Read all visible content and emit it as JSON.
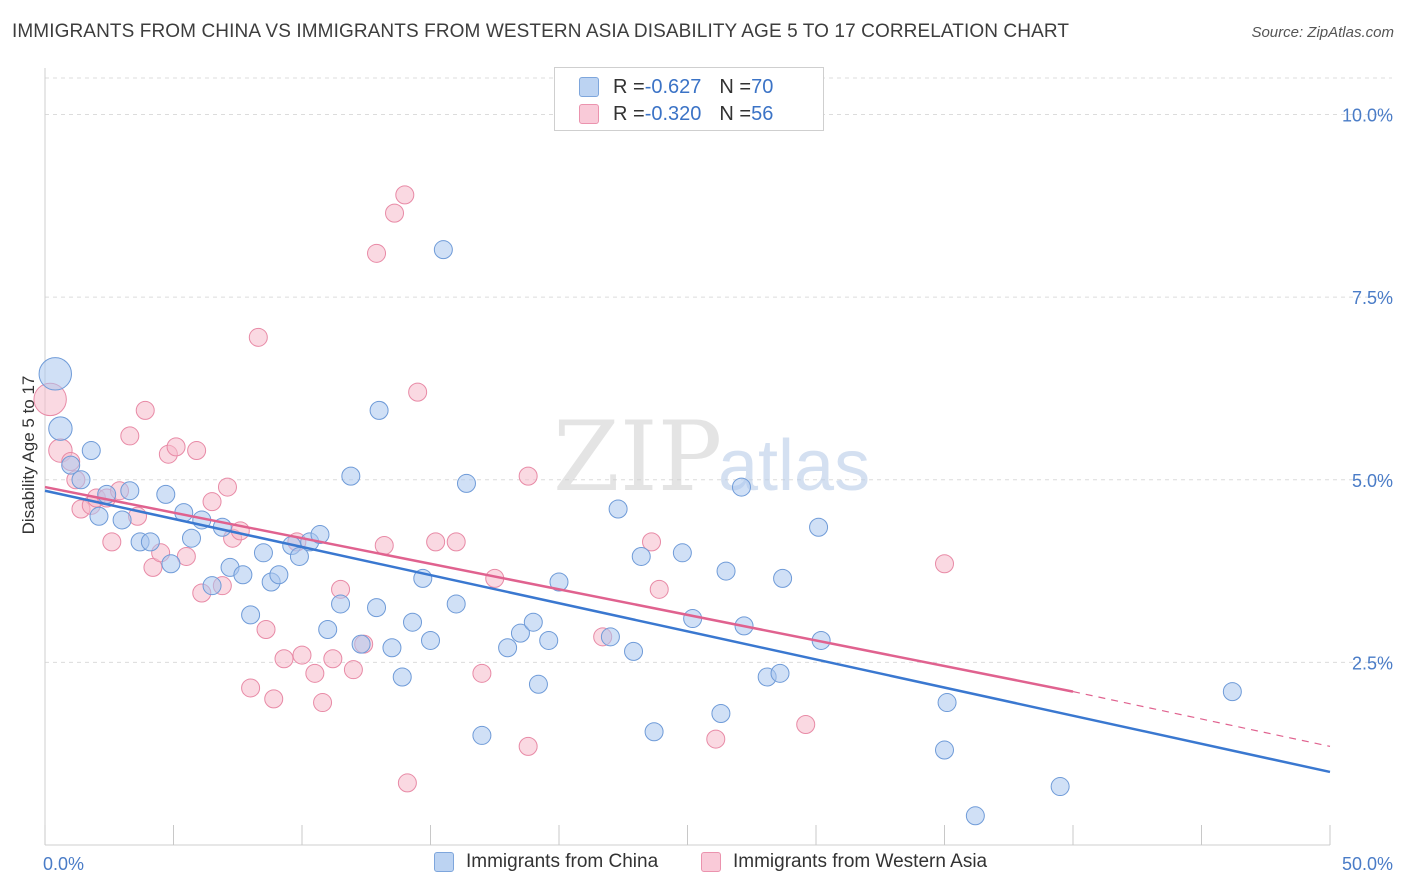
{
  "title": "IMMIGRANTS FROM CHINA VS IMMIGRANTS FROM WESTERN ASIA DISABILITY AGE 5 TO 17 CORRELATION CHART",
  "source": "Source: ZipAtlas.com",
  "watermark": {
    "zip": "ZIP",
    "atlas": "atlas"
  },
  "legend": {
    "rows": [
      {
        "r_label": "R = ",
        "r_value": "-0.627",
        "n_label": "N = ",
        "n_value": "70"
      },
      {
        "r_label": "R = ",
        "r_value": "-0.320",
        "n_label": "N = ",
        "n_value": "56"
      }
    ]
  },
  "bottom_legend": {
    "china": "Immigrants from China",
    "western_asia": "Immigrants from Western Asia"
  },
  "colors": {
    "china_fill": "#a9c7ee",
    "china_stroke": "#6f9bd8",
    "china_line": "#3a78d0",
    "wasia_fill": "#f6b9cb",
    "wasia_stroke": "#e88aa6",
    "wasia_line": "#e0628f",
    "grid": "#dcdcdc",
    "axis_label": "#4a7cc7"
  },
  "chart_data": {
    "type": "scatter",
    "title": "IMMIGRANTS FROM CHINA VS IMMIGRANTS FROM WESTERN ASIA DISABILITY AGE 5 TO 17 CORRELATION CHART",
    "xlabel": "",
    "ylabel": "Disability Age 5 to 17",
    "xlim": [
      0,
      50
    ],
    "ylim": [
      0,
      10.5
    ],
    "x_tick_labels": {
      "min": "0.0%",
      "max": "50.0%"
    },
    "y_ticks": [
      2.5,
      5.0,
      7.5,
      10.0
    ],
    "y_tick_labels": [
      "2.5%",
      "5.0%",
      "7.5%",
      "10.0%"
    ],
    "grid": true,
    "legend_position": "top-center",
    "series": [
      {
        "name": "Immigrants from China",
        "trend": {
          "x0": 0,
          "y0": 4.85,
          "x1": 50,
          "y1": 1.0
        },
        "points": [
          [
            0.4,
            6.45,
            1.8
          ],
          [
            0.6,
            5.7,
            1.3
          ],
          [
            1.0,
            5.2,
            1.0
          ],
          [
            1.4,
            5.0,
            1.0
          ],
          [
            1.8,
            5.4,
            1.0
          ],
          [
            2.1,
            4.5,
            1.0
          ],
          [
            2.4,
            4.8,
            1.0
          ],
          [
            3.0,
            4.45,
            1.0
          ],
          [
            3.3,
            4.85,
            1.0
          ],
          [
            3.7,
            4.15,
            1.0
          ],
          [
            4.1,
            4.15,
            1.0
          ],
          [
            4.7,
            4.8,
            1.0
          ],
          [
            4.9,
            3.85,
            1.0
          ],
          [
            5.4,
            4.55,
            1.0
          ],
          [
            5.7,
            4.2,
            1.0
          ],
          [
            6.1,
            4.45,
            1.0
          ],
          [
            6.5,
            3.55,
            1.0
          ],
          [
            6.9,
            4.35,
            1.0
          ],
          [
            7.2,
            3.8,
            1.0
          ],
          [
            7.7,
            3.7,
            1.0
          ],
          [
            8.0,
            3.15,
            1.0
          ],
          [
            8.5,
            4.0,
            1.0
          ],
          [
            8.8,
            3.6,
            1.0
          ],
          [
            9.1,
            3.7,
            1.0
          ],
          [
            9.6,
            4.1,
            1.0
          ],
          [
            9.9,
            3.95,
            1.0
          ],
          [
            10.3,
            4.15,
            1.0
          ],
          [
            10.7,
            4.25,
            1.0
          ],
          [
            11.0,
            2.95,
            1.0
          ],
          [
            11.5,
            3.3,
            1.0
          ],
          [
            11.9,
            5.05,
            1.0
          ],
          [
            12.3,
            2.75,
            1.0
          ],
          [
            12.9,
            3.25,
            1.0
          ],
          [
            13.0,
            5.95,
            1.0
          ],
          [
            13.5,
            2.7,
            1.0
          ],
          [
            13.9,
            2.3,
            1.0
          ],
          [
            14.3,
            3.05,
            1.0
          ],
          [
            14.7,
            3.65,
            1.0
          ],
          [
            15.0,
            2.8,
            1.0
          ],
          [
            15.5,
            8.15,
            1.0
          ],
          [
            16.0,
            3.3,
            1.0
          ],
          [
            16.4,
            4.95,
            1.0
          ],
          [
            17.0,
            1.5,
            1.0
          ],
          [
            18.0,
            2.7,
            1.0
          ],
          [
            18.5,
            2.9,
            1.0
          ],
          [
            19.0,
            3.05,
            1.0
          ],
          [
            19.2,
            2.2,
            1.0
          ],
          [
            19.6,
            2.8,
            1.0
          ],
          [
            20.0,
            3.6,
            1.0
          ],
          [
            22.0,
            2.85,
            1.0
          ],
          [
            22.3,
            4.6,
            1.0
          ],
          [
            22.9,
            2.65,
            1.0
          ],
          [
            23.2,
            3.95,
            1.0
          ],
          [
            23.7,
            1.55,
            1.0
          ],
          [
            24.8,
            4.0,
            1.0
          ],
          [
            25.2,
            3.1,
            1.0
          ],
          [
            26.3,
            1.8,
            1.0
          ],
          [
            26.5,
            3.75,
            1.0
          ],
          [
            27.1,
            4.9,
            1.0
          ],
          [
            27.2,
            3.0,
            1.0
          ],
          [
            28.1,
            2.3,
            1.0
          ],
          [
            28.6,
            2.35,
            1.0
          ],
          [
            28.7,
            3.65,
            1.0
          ],
          [
            30.2,
            2.8,
            1.0
          ],
          [
            30.1,
            4.35,
            1.0
          ],
          [
            35.0,
            1.3,
            1.0
          ],
          [
            35.1,
            1.95,
            1.0
          ],
          [
            36.2,
            0.4,
            1.0
          ],
          [
            39.5,
            0.8,
            1.0
          ],
          [
            46.2,
            2.1,
            1.0
          ]
        ]
      },
      {
        "name": "Immigrants from Western Asia",
        "trend": {
          "x0": 0,
          "y0": 4.9,
          "x1": 40,
          "y1": 2.1,
          "dash_x1": 50,
          "dash_y1": 1.35
        },
        "points": [
          [
            0.2,
            6.1,
            1.8
          ],
          [
            0.6,
            5.4,
            1.3
          ],
          [
            1.0,
            5.25,
            1.0
          ],
          [
            1.2,
            5.0,
            1.0
          ],
          [
            1.4,
            4.6,
            1.0
          ],
          [
            1.8,
            4.65,
            1.0
          ],
          [
            2.0,
            4.75,
            1.0
          ],
          [
            2.4,
            4.75,
            1.0
          ],
          [
            2.6,
            4.15,
            1.0
          ],
          [
            2.9,
            4.85,
            1.0
          ],
          [
            3.3,
            5.6,
            1.0
          ],
          [
            3.6,
            4.5,
            1.0
          ],
          [
            3.9,
            5.95,
            1.0
          ],
          [
            4.2,
            3.8,
            1.0
          ],
          [
            4.5,
            4.0,
            1.0
          ],
          [
            4.8,
            5.35,
            1.0
          ],
          [
            5.1,
            5.45,
            1.0
          ],
          [
            5.5,
            3.95,
            1.0
          ],
          [
            5.9,
            5.4,
            1.0
          ],
          [
            6.1,
            3.45,
            1.0
          ],
          [
            6.5,
            4.7,
            1.0
          ],
          [
            6.9,
            3.55,
            1.0
          ],
          [
            7.1,
            4.9,
            1.0
          ],
          [
            7.3,
            4.2,
            1.0
          ],
          [
            7.6,
            4.3,
            1.0
          ],
          [
            8.0,
            2.15,
            1.0
          ],
          [
            8.3,
            6.95,
            1.0
          ],
          [
            8.6,
            2.95,
            1.0
          ],
          [
            8.9,
            2.0,
            1.0
          ],
          [
            9.3,
            2.55,
            1.0
          ],
          [
            9.8,
            4.15,
            1.0
          ],
          [
            10.0,
            2.6,
            1.0
          ],
          [
            10.5,
            2.35,
            1.0
          ],
          [
            10.8,
            1.95,
            1.0
          ],
          [
            11.2,
            2.55,
            1.0
          ],
          [
            11.5,
            3.5,
            1.0
          ],
          [
            12.0,
            2.4,
            1.0
          ],
          [
            12.4,
            2.75,
            1.0
          ],
          [
            12.9,
            8.1,
            1.0
          ],
          [
            13.2,
            4.1,
            1.0
          ],
          [
            13.6,
            8.65,
            1.0
          ],
          [
            14.0,
            8.9,
            1.0
          ],
          [
            14.1,
            0.85,
            1.0
          ],
          [
            14.5,
            6.2,
            1.0
          ],
          [
            15.2,
            4.15,
            1.0
          ],
          [
            16.0,
            4.15,
            1.0
          ],
          [
            17.0,
            2.35,
            1.0
          ],
          [
            17.5,
            3.65,
            1.0
          ],
          [
            18.8,
            1.35,
            1.0
          ],
          [
            18.8,
            5.05,
            1.0
          ],
          [
            21.7,
            2.85,
            1.0
          ],
          [
            23.6,
            4.15,
            1.0
          ],
          [
            23.9,
            3.5,
            1.0
          ],
          [
            26.1,
            1.45,
            1.0
          ],
          [
            29.6,
            1.65,
            1.0
          ],
          [
            35.0,
            3.85,
            1.0
          ]
        ]
      }
    ]
  }
}
